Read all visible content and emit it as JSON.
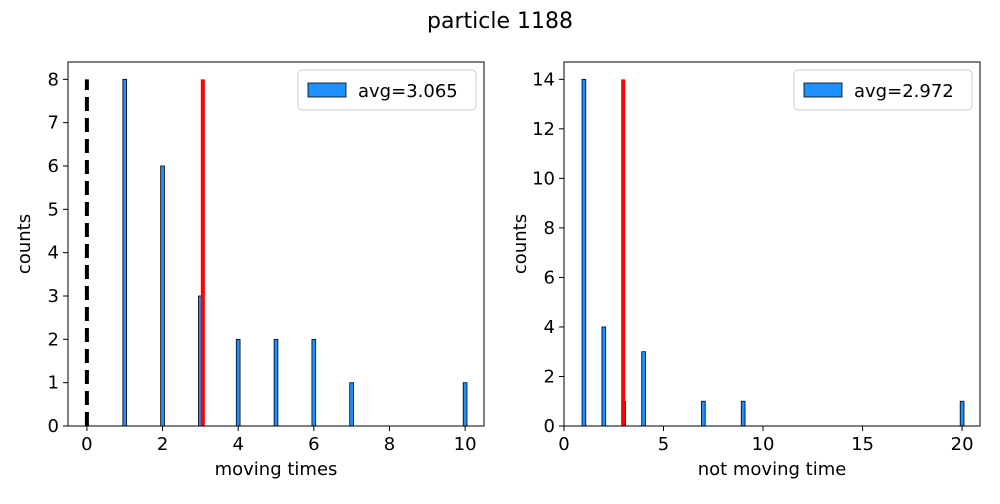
{
  "figure": {
    "suptitle": "particle 1188"
  },
  "chart_data": [
    {
      "type": "bar",
      "title": "",
      "xlabel": "moving times",
      "ylabel": "counts",
      "xlim": [
        -0.5,
        10.5
      ],
      "ylim": [
        0,
        8.4
      ],
      "xticks": [
        0,
        2,
        4,
        6,
        8,
        10
      ],
      "yticks": [
        0,
        1,
        2,
        3,
        4,
        5,
        6,
        7,
        8
      ],
      "bar_width": 0.1,
      "grid": false,
      "legend": {
        "location": "upper right",
        "label": "avg=3.065"
      },
      "bar_color": "#1e90ff",
      "bars": [
        {
          "x": 1,
          "count": 8
        },
        {
          "x": 2,
          "count": 6
        },
        {
          "x": 3,
          "count": 3
        },
        {
          "x": 4,
          "count": 2
        },
        {
          "x": 5,
          "count": 2
        },
        {
          "x": 6,
          "count": 2
        },
        {
          "x": 7,
          "count": 1
        },
        {
          "x": 10,
          "count": 1
        }
      ],
      "vlines": [
        {
          "x": 3.065,
          "ymin": 0,
          "ymax": 8,
          "color": "#ff0000",
          "style": "solid"
        },
        {
          "x": 0,
          "ymin": 0,
          "ymax": 8,
          "color": "#000000",
          "style": "dashed"
        }
      ]
    },
    {
      "type": "bar",
      "title": "",
      "xlabel": "not moving time",
      "ylabel": "counts",
      "xlim": [
        -0.0,
        20.9
      ],
      "ylim": [
        0,
        14.7
      ],
      "xticks": [
        0,
        5,
        10,
        15,
        20
      ],
      "yticks": [
        0,
        2,
        4,
        6,
        8,
        10,
        12,
        14
      ],
      "bar_width": 0.19,
      "grid": false,
      "legend": {
        "location": "upper right",
        "label": "avg=2.972"
      },
      "bar_color": "#1e90ff",
      "bars": [
        {
          "x": 1,
          "count": 14
        },
        {
          "x": 2,
          "count": 4
        },
        {
          "x": 3,
          "count": 1
        },
        {
          "x": 4,
          "count": 3
        },
        {
          "x": 7,
          "count": 1
        },
        {
          "x": 9,
          "count": 1
        },
        {
          "x": 20,
          "count": 1
        }
      ],
      "vlines": [
        {
          "x": 2.972,
          "ymin": 0,
          "ymax": 14,
          "color": "#ff0000",
          "style": "solid"
        }
      ]
    }
  ]
}
